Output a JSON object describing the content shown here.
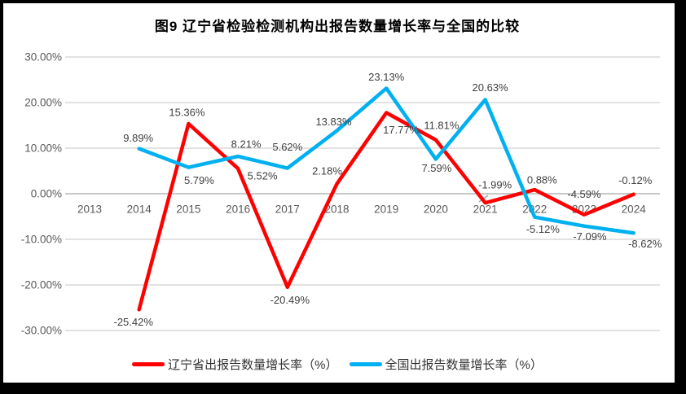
{
  "figure": {
    "title": "图9  辽宁省检验检测机构出报告数量增长率与全国的比较"
  },
  "colors": {
    "liaoning_red": "#FF0000",
    "national_blue": "#00B0F0",
    "grid_line": "#E2E2E2",
    "zero_axis_line": "#C9C9C9",
    "tick_text": "#595959",
    "data_label_text": "#404040",
    "leader_line": "#A6A6A6",
    "frame_border": "#000000"
  },
  "chart_data": {
    "type": "line",
    "title": "图9  辽宁省检验检测机构出报告数量增长率与全国的比较",
    "xlabel": "",
    "ylabel": "",
    "ylim": [
      -30,
      30
    ],
    "grid": true,
    "legend_position": "bottom",
    "categories": [
      "2013",
      "2014",
      "2015",
      "2016",
      "2017",
      "2018",
      "2019",
      "2020",
      "2021",
      "2022",
      "2023",
      "2024"
    ],
    "y_ticks": [
      {
        "value": 30,
        "label": "30.00%"
      },
      {
        "value": 20,
        "label": "20.00%"
      },
      {
        "value": 10,
        "label": "10.00%"
      },
      {
        "value": 0,
        "label": "0.00%"
      },
      {
        "value": -10,
        "label": "-10.00%"
      },
      {
        "value": -20,
        "label": "-20.00%"
      },
      {
        "value": -30,
        "label": "-30.00%"
      }
    ],
    "series": [
      {
        "name": "辽宁省出报告数量增长率（%）",
        "color_key": "liaoning_red",
        "start_category_index": 1,
        "values": [
          -25.42,
          15.36,
          5.52,
          -20.49,
          2.18,
          17.77,
          11.81,
          -1.99,
          0.88,
          -4.59,
          -0.12
        ],
        "point_labels": [
          "-25.42%",
          "15.36%",
          "5.52%",
          "-20.49%",
          "2.18%",
          "17.77%",
          "11.81%",
          "-1.99%",
          "0.88%",
          "-4.59%",
          "-0.12%"
        ]
      },
      {
        "name": "全国出报告数量增长率（%）",
        "color_key": "national_blue",
        "start_category_index": 1,
        "values": [
          9.89,
          5.79,
          8.21,
          5.62,
          13.83,
          23.13,
          7.59,
          20.63,
          -5.12,
          -7.09,
          -8.62
        ],
        "point_labels": [
          "9.89%",
          "5.79%",
          "8.21%",
          "5.62%",
          "13.83%",
          "23.13%",
          "7.59%",
          "20.63%",
          "-5.12%",
          "-7.09%",
          "-8.62%"
        ]
      }
    ]
  },
  "legend": {
    "items": [
      {
        "label": "辽宁省出报告数量增长率（%）",
        "color_key": "liaoning_red"
      },
      {
        "label": "全国出报告数量增长率（%）",
        "color_key": "national_blue"
      }
    ]
  }
}
